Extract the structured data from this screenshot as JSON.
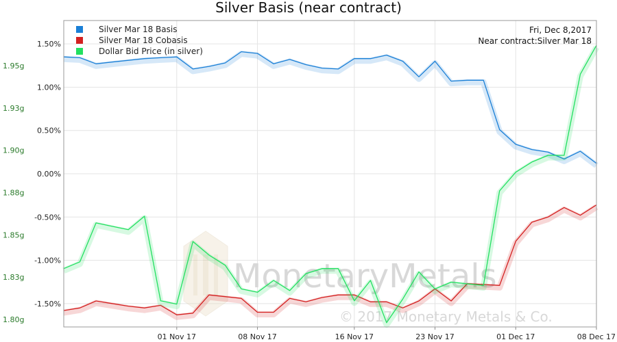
{
  "chart_data": {
    "type": "line",
    "title": "Silver Basis (near contract)",
    "info": {
      "date": "Fri, Dec 8,2017",
      "near_contract": "Near contract:Silver Mar 18"
    },
    "x_dates": [
      "2017-10-23",
      "2017-10-24",
      "2017-10-25",
      "2017-10-26",
      "2017-10-27",
      "2017-10-30",
      "2017-10-31",
      "2017-11-01",
      "2017-11-02",
      "2017-11-03",
      "2017-11-06",
      "2017-11-07",
      "2017-11-08",
      "2017-11-09",
      "2017-11-10",
      "2017-11-13",
      "2017-11-14",
      "2017-11-15",
      "2017-11-16",
      "2017-11-17",
      "2017-11-20",
      "2017-11-21",
      "2017-11-22",
      "2017-11-24",
      "2017-11-27",
      "2017-11-28",
      "2017-11-29",
      "2017-11-30",
      "2017-12-01",
      "2017-12-04",
      "2017-12-05",
      "2017-12-06",
      "2017-12-07",
      "2017-12-08"
    ],
    "x_ticks": [
      {
        "label": "01 Nov 17",
        "index": 7
      },
      {
        "label": "08 Nov 17",
        "index": 12
      },
      {
        "label": "16 Nov 17",
        "index": 18
      },
      {
        "label": "23 Nov 17",
        "index": 23
      },
      {
        "label": "01 Dec 17",
        "index": 28
      },
      {
        "label": "08 Dec 17",
        "index": 33
      }
    ],
    "left_axis": {
      "ticks": [
        "1.80g",
        "1.83g",
        "1.85g",
        "1.88g",
        "1.90g",
        "1.93g",
        "1.95g"
      ],
      "values": [
        1.8,
        1.825,
        1.85,
        1.875,
        1.9,
        1.925,
        1.95
      ],
      "range": [
        1.7955,
        1.9767
      ]
    },
    "right_axis": {
      "ticks": [
        "-1.50%",
        "-1.00%",
        "-0.50%",
        "0.00%",
        "0.50%",
        "1.00%",
        "1.50%"
      ],
      "values": [
        -1.5,
        -1.0,
        -0.5,
        0.0,
        0.5,
        1.0,
        1.5
      ],
      "range": [
        -1.77,
        1.77
      ]
    },
    "series": [
      {
        "name": "Silver Mar 18 Basis",
        "color": "#1a7fd6",
        "axis": "right",
        "values": [
          1.35,
          1.34,
          1.27,
          1.29,
          1.31,
          1.33,
          1.34,
          1.35,
          1.21,
          1.24,
          1.28,
          1.41,
          1.39,
          1.27,
          1.32,
          1.26,
          1.22,
          1.21,
          1.33,
          1.33,
          1.37,
          1.3,
          1.12,
          1.3,
          1.07,
          1.08,
          1.08,
          0.51,
          0.34,
          0.28,
          0.25,
          0.17,
          0.26,
          0.12
        ]
      },
      {
        "name": "Silver Mar 18 Cobasis",
        "color": "#d42020",
        "axis": "right",
        "values": [
          -1.58,
          -1.55,
          -1.47,
          -1.5,
          -1.53,
          -1.55,
          -1.52,
          -1.63,
          -1.61,
          -1.4,
          -1.42,
          -1.44,
          -1.6,
          -1.6,
          -1.44,
          -1.48,
          -1.43,
          -1.4,
          -1.4,
          -1.48,
          -1.48,
          -1.55,
          -1.47,
          -1.33,
          -1.47,
          -1.27,
          -1.28,
          -1.29,
          -0.78,
          -0.56,
          -0.5,
          -0.39,
          -0.48,
          -0.36
        ]
      },
      {
        "name": "Dollar Bid Price (in silver)",
        "color": "#22e060",
        "axis": "left",
        "values": [
          1.83,
          1.834,
          1.857,
          1.855,
          1.853,
          1.861,
          1.811,
          1.809,
          1.846,
          1.838,
          1.832,
          1.818,
          1.816,
          1.823,
          1.817,
          1.827,
          1.83,
          1.83,
          1.811,
          1.823,
          1.798,
          1.812,
          1.828,
          1.818,
          1.822,
          1.821,
          1.82,
          1.876,
          1.887,
          1.893,
          1.897,
          1.897,
          1.945,
          1.962
        ]
      }
    ],
    "grid": true,
    "legend_position": "top-left",
    "watermark": {
      "brand": "MonetaryMetals",
      "copyright": "© 2017 Monetary Metals & Co."
    }
  }
}
